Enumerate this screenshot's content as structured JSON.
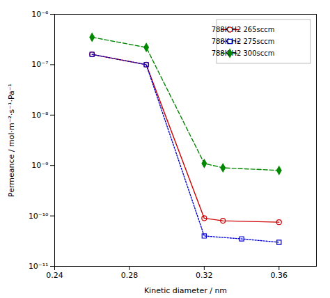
{
  "chart_data": {
    "type": "line",
    "xlabel": "Kinetic diameter / nm",
    "ylabel": "Permeance / mol·m⁻²·s⁻¹·Pa⁻¹",
    "series": [
      {
        "name": "788K H2 265sccm",
        "color": "#cc0000",
        "line_style": "solid",
        "marker": "open circle",
        "x": [
          0.26,
          0.289,
          0.32,
          0.33,
          0.36
        ],
        "values": [
          1.6e-07,
          1e-07,
          9e-11,
          8e-11,
          7.5e-11
        ]
      },
      {
        "name": "788K H2 275sccm",
        "color": "#0000cc",
        "line_style": "dotted",
        "marker": "open square",
        "x": [
          0.26,
          0.289,
          0.32,
          0.34,
          0.36
        ],
        "values": [
          1.6e-07,
          1e-07,
          4e-11,
          3.5e-11,
          3e-11
        ]
      },
      {
        "name": "788K H2 300sccm",
        "color": "#008800",
        "line_style": "dashed",
        "marker": "diamond",
        "x": [
          0.26,
          0.289,
          0.32,
          0.33,
          0.36
        ],
        "values": [
          3.5e-07,
          2.2e-07,
          1.1e-09,
          9e-10,
          8e-10
        ]
      }
    ],
    "xlim": [
      0.24,
      0.38
    ],
    "xticks": [
      0.24,
      0.28,
      0.32,
      0.36
    ],
    "ylim": [
      1e-11,
      1e-06
    ],
    "yticks": [
      {
        "value": 1e-11,
        "label": "10⁻¹¹"
      },
      {
        "value": 1e-10,
        "label": "10⁻¹⁰"
      },
      {
        "value": 1e-09,
        "label": "10⁻⁹"
      },
      {
        "value": 1e-08,
        "label": "10⁻⁸"
      },
      {
        "value": 1e-07,
        "label": "10⁻⁷"
      },
      {
        "value": 1e-06,
        "label": "10⁻⁶"
      }
    ],
    "log": "y",
    "grid": false,
    "legend": "upper right"
  }
}
